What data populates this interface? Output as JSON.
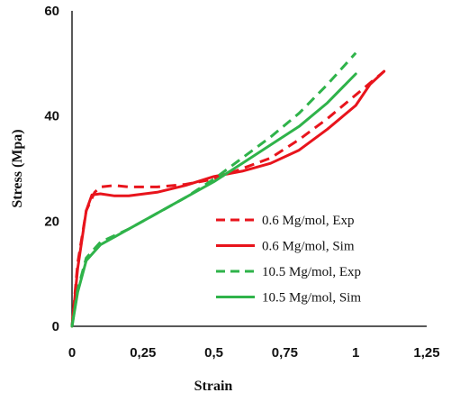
{
  "chart_data": {
    "type": "line",
    "xlabel": "Strain",
    "ylabel": "Stress (Mpa)",
    "xlim": [
      0,
      1.25
    ],
    "ylim": [
      0,
      60
    ],
    "x_ticks": [
      "0",
      "0,25",
      "0,5",
      "0,75",
      "1",
      "1,25"
    ],
    "y_ticks": [
      "0",
      "20",
      "40",
      "60"
    ],
    "grid": false,
    "legend_position": "right",
    "series": [
      {
        "name": "0.6 Mg/mol, Exp",
        "style": "dashed",
        "color": "#e8141c",
        "x": [
          0,
          0.02,
          0.05,
          0.08,
          0.1,
          0.15,
          0.2,
          0.3,
          0.4,
          0.5,
          0.6,
          0.7,
          0.8,
          0.9,
          1.0,
          1.1
        ],
        "y": [
          0,
          12,
          22,
          25.5,
          26.5,
          26.8,
          26.5,
          26.5,
          27,
          28,
          30,
          32,
          35.5,
          39.5,
          44,
          48.5
        ]
      },
      {
        "name": "0.6 Mg/mol, Sim",
        "style": "solid",
        "color": "#e8141c",
        "x": [
          0,
          0.02,
          0.05,
          0.07,
          0.1,
          0.15,
          0.2,
          0.3,
          0.4,
          0.5,
          0.6,
          0.7,
          0.8,
          0.9,
          1.0,
          1.05,
          1.1
        ],
        "y": [
          0,
          11,
          22,
          25,
          25.2,
          24.8,
          24.8,
          25.5,
          26.8,
          28.5,
          29.5,
          31,
          33.5,
          37.5,
          42,
          46,
          48.5
        ]
      },
      {
        "name": "10.5 Mg/mol, Exp",
        "style": "dashed",
        "color": "#2fb34a",
        "x": [
          0,
          0.02,
          0.05,
          0.1,
          0.2,
          0.3,
          0.4,
          0.5,
          0.6,
          0.7,
          0.8,
          0.9,
          1.0
        ],
        "y": [
          0,
          7,
          13,
          16,
          18.5,
          21.5,
          24.5,
          28,
          32,
          36,
          40.5,
          46,
          52
        ]
      },
      {
        "name": "10.5 Mg/mol, Sim",
        "style": "solid",
        "color": "#2fb34a",
        "x": [
          0,
          0.02,
          0.05,
          0.1,
          0.2,
          0.3,
          0.4,
          0.5,
          0.6,
          0.7,
          0.8,
          0.9,
          1.0
        ],
        "y": [
          0,
          6.5,
          12.5,
          15.5,
          18.5,
          21.5,
          24.5,
          27.5,
          31,
          34.5,
          38,
          42.5,
          48
        ]
      }
    ]
  }
}
